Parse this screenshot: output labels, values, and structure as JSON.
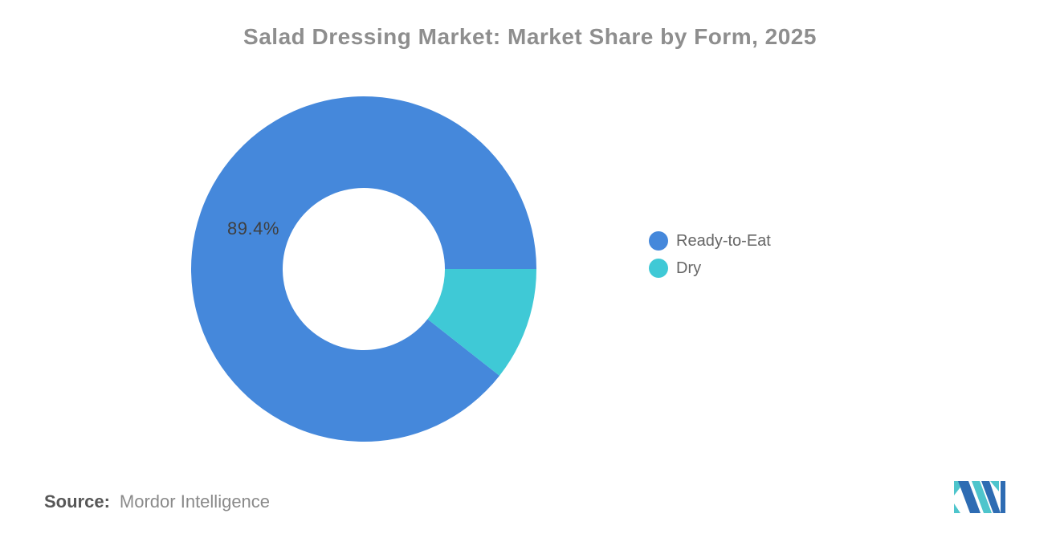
{
  "chart_data": {
    "type": "pie",
    "subtype": "donut",
    "title": "Salad Dressing Market: Market Share by Form, 2025",
    "year": "2025",
    "unit": "%",
    "legend_position": "right",
    "start_angle_deg": 128.16,
    "inner_radius_pct": 47,
    "series": [
      {
        "name": "Ready-to-Eat",
        "value": 89.4,
        "color": "#4588DB",
        "data_label": "89.4%"
      },
      {
        "name": "Dry",
        "value": 10.6,
        "color": "#3FC9D6",
        "data_label": ""
      }
    ]
  },
  "source": {
    "label": "Source:",
    "value": "Mordor Intelligence"
  },
  "logo": {
    "name": "Mordor Intelligence logo",
    "teal": "#4EC5CC",
    "blue": "#2E6CB3"
  }
}
